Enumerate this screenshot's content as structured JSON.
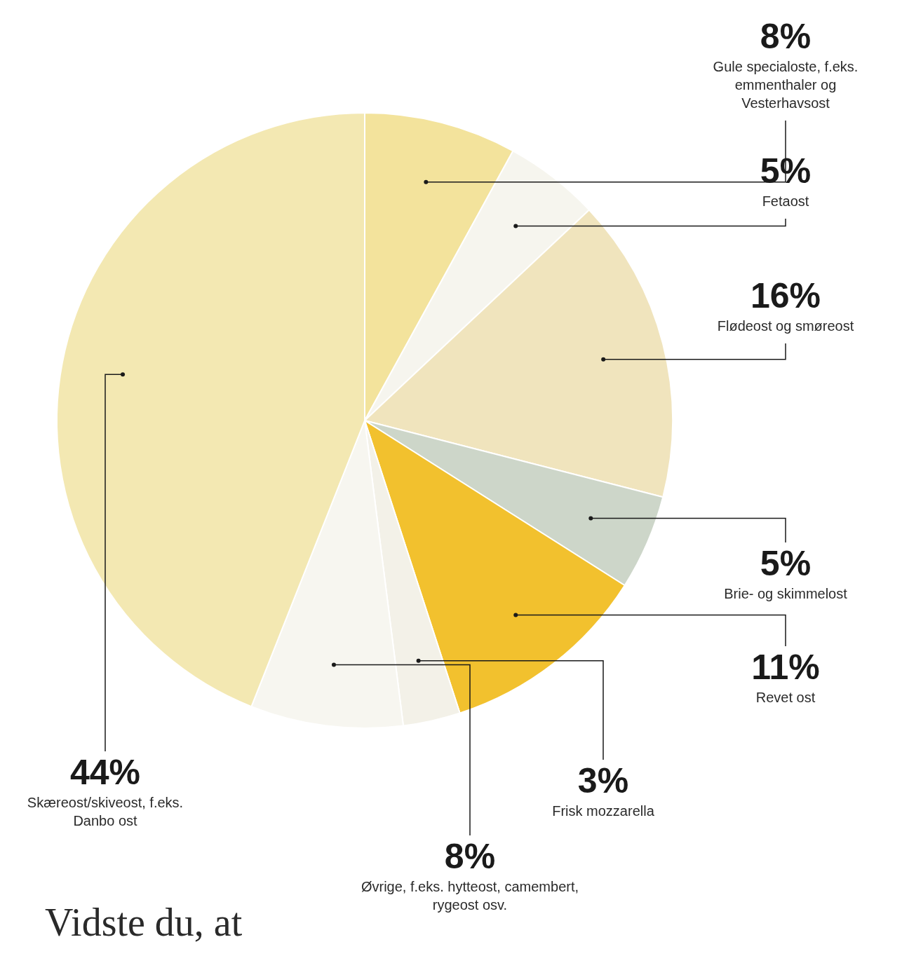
{
  "chart_data": {
    "type": "pie",
    "categories": [
      "Gule specialoste, f.eks. emmenthaler og Vesterhavsost",
      "Fetaost",
      "Flødeost og smøreost",
      "Brie- og skimmelost",
      "Revet ost",
      "Frisk mozzarella",
      "Øvrige, f.eks. hytteost, camembert, rygeost osv.",
      "Skæreost/skiveost, f.eks. Danbo ost"
    ],
    "values": [
      8,
      5,
      16,
      5,
      11,
      3,
      8,
      44
    ],
    "value_labels": [
      "8%",
      "5%",
      "16%",
      "5%",
      "11%",
      "3%",
      "8%",
      "44%"
    ],
    "colors": [
      "#f3e39c",
      "#f6f5ee",
      "#f0e4bd",
      "#cdd6c9",
      "#f2c12e",
      "#f3f1e8",
      "#f7f6f0",
      "#f3e8b2"
    ],
    "data_labels": true,
    "annotations": [
      "Vidste du, at"
    ]
  }
}
